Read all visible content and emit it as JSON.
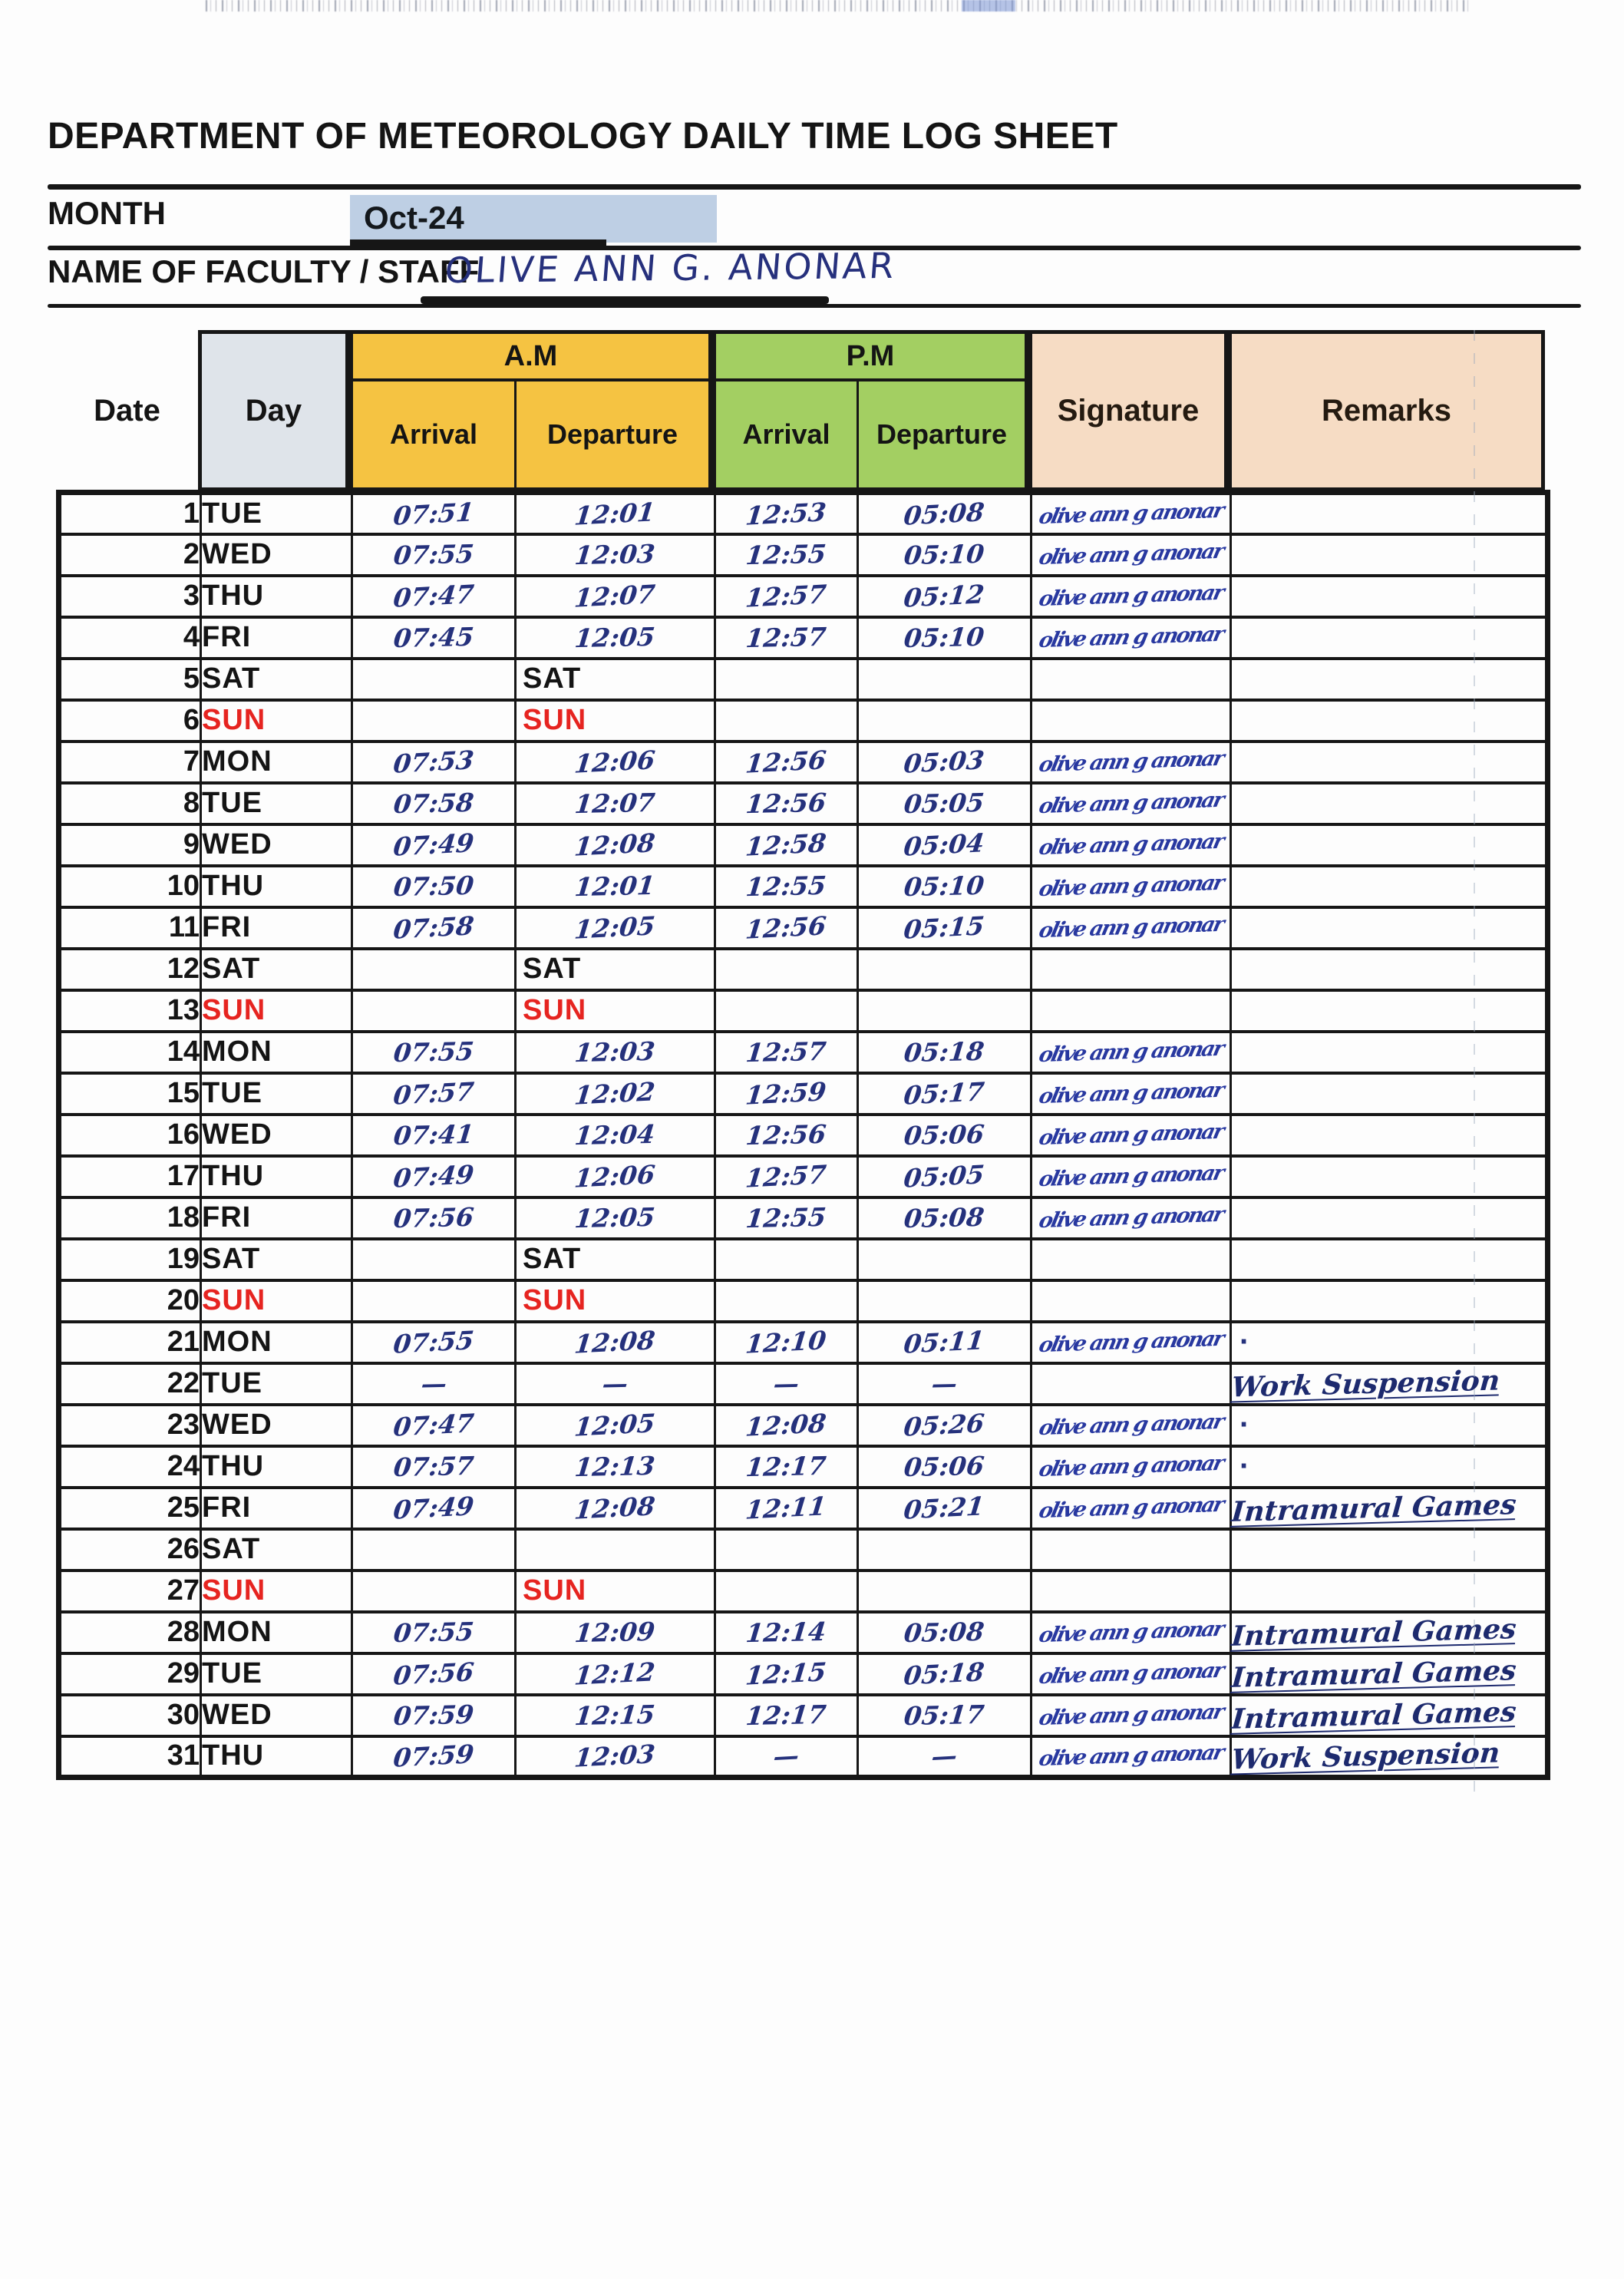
{
  "header": {
    "title": "DEPARTMENT OF METEOROLOGY DAILY TIME LOG SHEET",
    "month_label": "MONTH",
    "month_value": "Oct-24",
    "name_label": "NAME OF FACULTY / STAFF",
    "name_value": "OLIVE ANN G. ANONAR"
  },
  "table": {
    "headers": {
      "date": "Date",
      "day": "Day",
      "am": "A.M",
      "pm": "P.M",
      "arrival": "Arrival",
      "departure": "Departure",
      "signature": "Signature",
      "remarks": "Remarks"
    }
  },
  "colors": {
    "am_header": "#f5c342",
    "pm_header": "#a3cf62",
    "day_header": "#dfe4ea",
    "signature_remarks_header": "#f6dcc4",
    "month_highlight": "#becfe4",
    "sunday_red": "#e62420",
    "handwriting_ink": "#25317c",
    "signature_ink": "#2838a0"
  },
  "signature_text": "olive ann g anonar",
  "rows": [
    {
      "d": "1",
      "day": "TUE",
      "aa": "07:51",
      "ad": "12:01",
      "pa": "12:53",
      "pd": "05:08",
      "sig": true,
      "rem": ""
    },
    {
      "d": "2",
      "day": "WED",
      "aa": "07:55",
      "ad": "12:03",
      "pa": "12:55",
      "pd": "05:10",
      "sig": true,
      "rem": ""
    },
    {
      "d": "3",
      "day": "THU",
      "aa": "07:47",
      "ad": "12:07",
      "pa": "12:57",
      "pd": "05:12",
      "sig": true,
      "rem": ""
    },
    {
      "d": "4",
      "day": "FRI",
      "aa": "07:45",
      "ad": "12:05",
      "pa": "12:57",
      "pd": "05:10",
      "sig": true,
      "rem": ""
    },
    {
      "d": "5",
      "day": "SAT",
      "wl": "SAT",
      "aa": "",
      "ad": "",
      "pa": "",
      "pd": "",
      "sig": false,
      "rem": ""
    },
    {
      "d": "6",
      "day": "SUN",
      "wl": "SUN",
      "aa": "",
      "ad": "",
      "pa": "",
      "pd": "",
      "sig": false,
      "rem": ""
    },
    {
      "d": "7",
      "day": "MON",
      "aa": "07:53",
      "ad": "12:06",
      "pa": "12:56",
      "pd": "05:03",
      "sig": true,
      "rem": ""
    },
    {
      "d": "8",
      "day": "TUE",
      "aa": "07:58",
      "ad": "12:07",
      "pa": "12:56",
      "pd": "05:05",
      "sig": true,
      "rem": ""
    },
    {
      "d": "9",
      "day": "WED",
      "aa": "07:49",
      "ad": "12:08",
      "pa": "12:58",
      "pd": "05:04",
      "sig": true,
      "rem": ""
    },
    {
      "d": "10",
      "day": "THU",
      "aa": "07:50",
      "ad": "12:01",
      "pa": "12:55",
      "pd": "05:10",
      "sig": true,
      "rem": ""
    },
    {
      "d": "11",
      "day": "FRI",
      "aa": "07:58",
      "ad": "12:05",
      "pa": "12:56",
      "pd": "05:15",
      "sig": true,
      "rem": ""
    },
    {
      "d": "12",
      "day": "SAT",
      "wl": "SAT",
      "aa": "",
      "ad": "",
      "pa": "",
      "pd": "",
      "sig": false,
      "rem": ""
    },
    {
      "d": "13",
      "day": "SUN",
      "wl": "SUN",
      "aa": "",
      "ad": "",
      "pa": "",
      "pd": "",
      "sig": false,
      "rem": ""
    },
    {
      "d": "14",
      "day": "MON",
      "aa": "07:55",
      "ad": "12:03",
      "pa": "12:57",
      "pd": "05:18",
      "sig": true,
      "rem": ""
    },
    {
      "d": "15",
      "day": "TUE",
      "aa": "07:57",
      "ad": "12:02",
      "pa": "12:59",
      "pd": "05:17",
      "sig": true,
      "rem": ""
    },
    {
      "d": "16",
      "day": "WED",
      "aa": "07:41",
      "ad": "12:04",
      "pa": "12:56",
      "pd": "05:06",
      "sig": true,
      "rem": ""
    },
    {
      "d": "17",
      "day": "THU",
      "aa": "07:49",
      "ad": "12:06",
      "pa": "12:57",
      "pd": "05:05",
      "sig": true,
      "rem": ""
    },
    {
      "d": "18",
      "day": "FRI",
      "aa": "07:56",
      "ad": "12:05",
      "pa": "12:55",
      "pd": "05:08",
      "sig": true,
      "rem": ""
    },
    {
      "d": "19",
      "day": "SAT",
      "wl": "SAT",
      "aa": "",
      "ad": "",
      "pa": "",
      "pd": "",
      "sig": false,
      "rem": ""
    },
    {
      "d": "20",
      "day": "SUN",
      "wl": "SUN",
      "aa": "",
      "ad": "",
      "pa": "",
      "pd": "",
      "sig": false,
      "rem": ""
    },
    {
      "d": "21",
      "day": "MON",
      "aa": "07:55",
      "ad": "12:08",
      "pa": "12:10",
      "pd": "05:11",
      "sig": true,
      "rem": "·"
    },
    {
      "d": "22",
      "day": "TUE",
      "aa": "—",
      "ad": "—",
      "pa": "—",
      "pd": "—",
      "sig": false,
      "rem": "Work Suspension"
    },
    {
      "d": "23",
      "day": "WED",
      "aa": "07:47",
      "ad": "12:05",
      "pa": "12:08",
      "pd": "05:26",
      "sig": true,
      "rem": "·"
    },
    {
      "d": "24",
      "day": "THU",
      "aa": "07:57",
      "ad": "12:13",
      "pa": "12:17",
      "pd": "05:06",
      "sig": true,
      "rem": "·"
    },
    {
      "d": "25",
      "day": "FRI",
      "aa": "07:49",
      "ad": "12:08",
      "pa": "12:11",
      "pd": "05:21",
      "sig": true,
      "rem": "Intramural Games"
    },
    {
      "d": "26",
      "day": "SAT",
      "wl": "",
      "aa": "",
      "ad": "",
      "pa": "",
      "pd": "",
      "sig": false,
      "rem": ""
    },
    {
      "d": "27",
      "day": "SUN",
      "wl": "SUN",
      "aa": "",
      "ad": "",
      "pa": "",
      "pd": "",
      "sig": false,
      "rem": ""
    },
    {
      "d": "28",
      "day": "MON",
      "aa": "07:55",
      "ad": "12:09",
      "pa": "12:14",
      "pd": "05:08",
      "sig": true,
      "rem": "Intramural Games"
    },
    {
      "d": "29",
      "day": "TUE",
      "aa": "07:56",
      "ad": "12:12",
      "pa": "12:15",
      "pd": "05:18",
      "sig": true,
      "rem": "Intramural Games"
    },
    {
      "d": "30",
      "day": "WED",
      "aa": "07:59",
      "ad": "12:15",
      "pa": "12:17",
      "pd": "05:17",
      "sig": true,
      "rem": "Intramural Games"
    },
    {
      "d": "31",
      "day": "THU",
      "aa": "07:59",
      "ad": "12:03",
      "pa": "—",
      "pd": "—",
      "sig": true,
      "rem": "Work Suspension"
    }
  ]
}
